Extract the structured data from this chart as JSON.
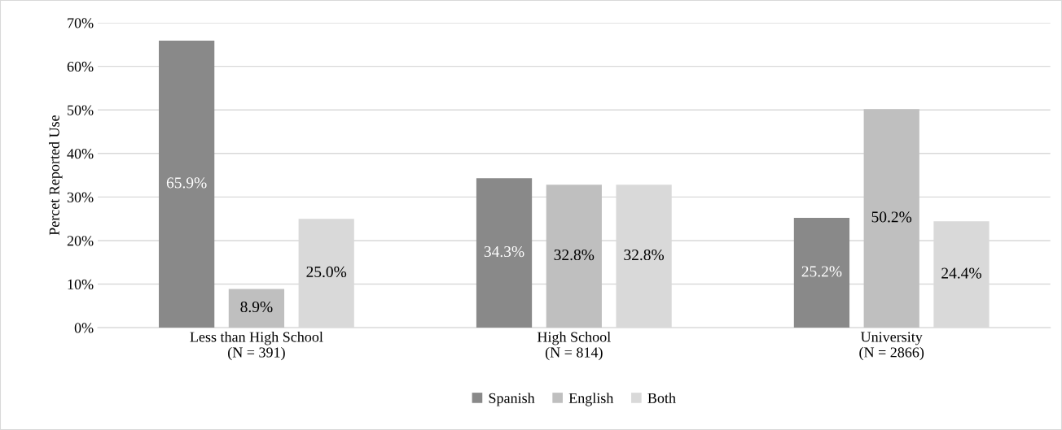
{
  "chart_data": {
    "type": "bar",
    "ylabel": "Percet Reported Use",
    "categories": [
      "Less than High School\n(N = 391)",
      "High School\n(N = 814)",
      "University\n(N = 2866)"
    ],
    "series": [
      {
        "name": "Spanish",
        "color": "#898989",
        "values": [
          65.9,
          34.3,
          25.2
        ],
        "value_labels": [
          "65.9%",
          "34.3%",
          "25.2%"
        ]
      },
      {
        "name": "English",
        "color": "#bfbfbf",
        "values": [
          8.9,
          32.8,
          50.2
        ],
        "value_labels": [
          "8.9%",
          "32.8%",
          "50.2%"
        ]
      },
      {
        "name": "Both",
        "color": "#d9d9d9",
        "values": [
          25.0,
          32.8,
          24.4
        ],
        "value_labels": [
          "25.0%",
          "32.8%",
          "24.4%"
        ]
      }
    ],
    "ylim": [
      0,
      70
    ],
    "yticks": [
      {
        "value": 0,
        "label": "0%"
      },
      {
        "value": 10,
        "label": "10%"
      },
      {
        "value": 20,
        "label": "20%"
      },
      {
        "value": 30,
        "label": "30%"
      },
      {
        "value": 40,
        "label": "40%"
      },
      {
        "value": 50,
        "label": "50%"
      },
      {
        "value": 60,
        "label": "60%"
      },
      {
        "value": 70,
        "label": "70%"
      }
    ],
    "grid": "y",
    "legend": "bottom"
  }
}
